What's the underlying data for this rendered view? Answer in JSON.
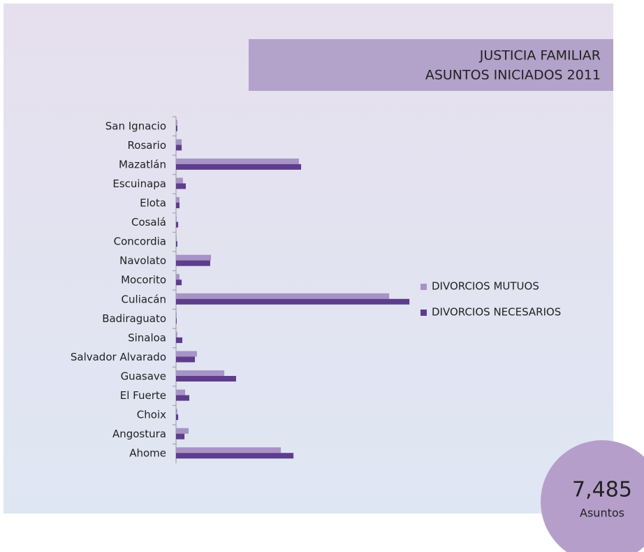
{
  "chart_data": {
    "type": "bar",
    "orientation": "horizontal",
    "title": [
      "JUSTICIA FAMILIAR",
      "ASUNTOS INICIADOS 2011"
    ],
    "categories": [
      "San Ignacio",
      "Rosario",
      "Mazatlán",
      "Escuinapa",
      "Elota",
      "Cosalá",
      "Concordia",
      "Navolato",
      "Mocorito",
      "Culiacán",
      "Badiraguato",
      "Sinaloa",
      "Salvador Alvarado",
      "Guasave",
      "El Fuerte",
      "Choix",
      "Angostura",
      "Ahome"
    ],
    "series": [
      {
        "name": "DIVORCIOS MUTUOS",
        "color": "#a893c6",
        "values": [
          8,
          34,
          741,
          42,
          21,
          4,
          4,
          211,
          21,
          1285,
          4,
          8,
          126,
          291,
          55,
          8,
          76,
          632
        ]
      },
      {
        "name": "DIVORCIOS NECESARIOS",
        "color": "#5e3d8c",
        "values": [
          8,
          34,
          754,
          59,
          21,
          13,
          8,
          206,
          34,
          1407,
          4,
          38,
          114,
          362,
          80,
          13,
          51,
          708
        ]
      }
    ],
    "xlim": [
      0,
      1600
    ],
    "total": {
      "value": "7,485",
      "label": "Asuntos"
    }
  }
}
